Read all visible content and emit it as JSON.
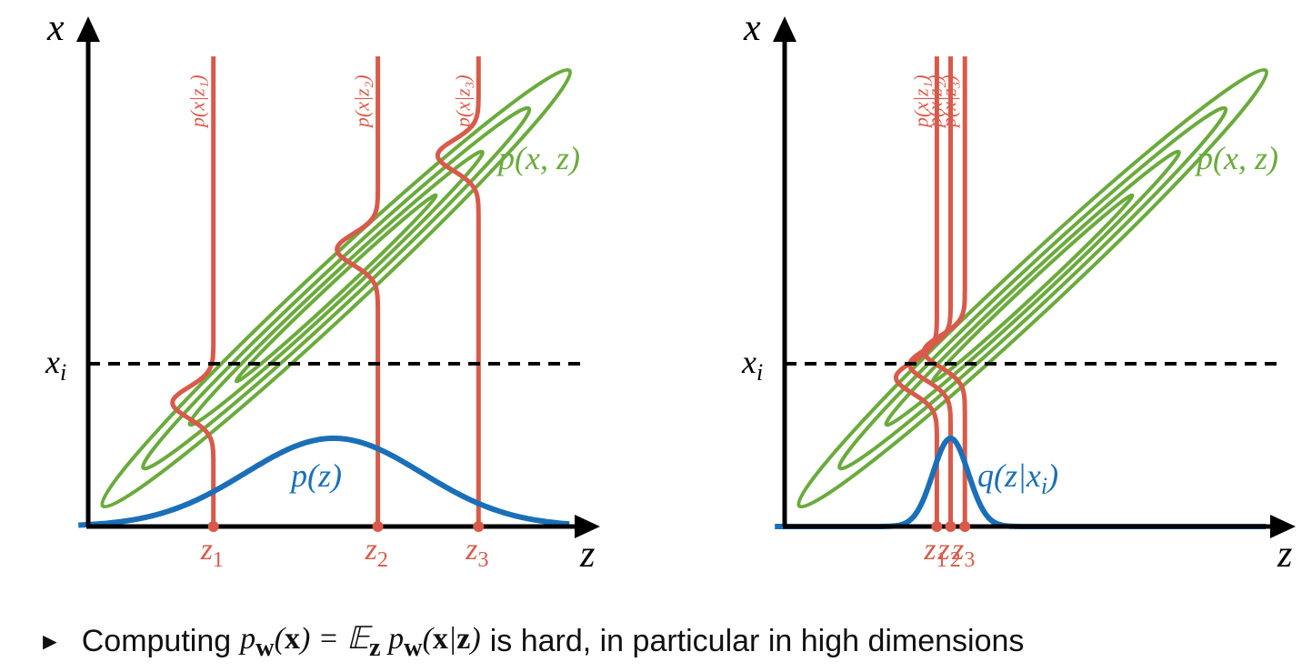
{
  "colors": {
    "axis": "#000000",
    "joint_contour": "#6aab3c",
    "conditional": "#d95a4a",
    "prior": "#1a6fb8",
    "dashed_line": "#000000"
  },
  "panels": [
    {
      "x_axis_label": "x",
      "z_axis_label": "z",
      "xi_label": "x_i",
      "joint_label": "p(x, z)",
      "density_label": "p(z)",
      "density_width": 0.18,
      "conditionals": [
        {
          "label": "p(x|z₁)",
          "tick_label": "z",
          "tick_sub": "1",
          "z": 0.255
        },
        {
          "label": "p(x|z₂)",
          "tick_label": "z",
          "tick_sub": "2",
          "z": 0.59
        },
        {
          "label": "p(x|z₃)",
          "tick_label": "z",
          "tick_sub": "3",
          "z": 0.795
        }
      ]
    },
    {
      "x_axis_label": "x",
      "z_axis_label": "z",
      "xi_label": "x_i",
      "joint_label": "p(x, z)",
      "density_label": "q(z|x_i)",
      "density_width": 0.036,
      "conditionals": [
        {
          "label": "p(x|z₁)",
          "tick_label": "z",
          "tick_sub": "1",
          "z": 0.31
        },
        {
          "label": "p(x|z₂)",
          "tick_label": "z",
          "tick_sub": "2",
          "z": 0.338
        },
        {
          "label": "p(x|z₃)",
          "tick_label": "z",
          "tick_sub": "3",
          "z": 0.367
        }
      ]
    }
  ],
  "bullet": {
    "glyph": "►",
    "prefix": "Computing",
    "formula": "p_w(x) = E_z p_w(x|z)",
    "suffix": "is hard, in particular in high dimensions"
  }
}
